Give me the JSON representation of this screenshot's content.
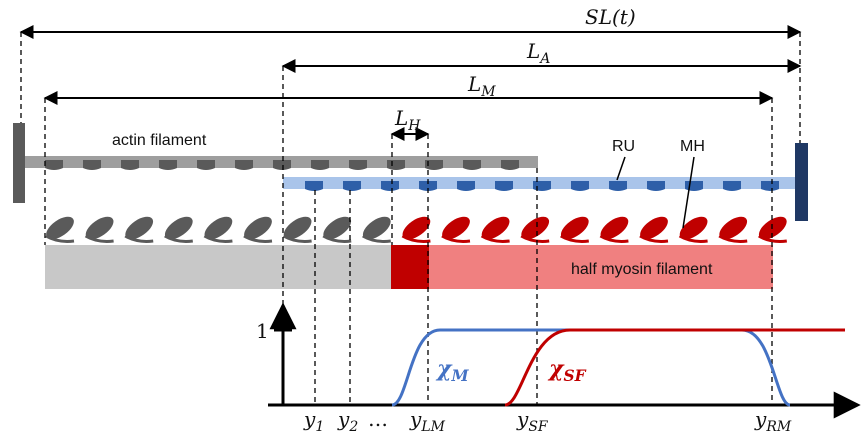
{
  "labels": {
    "sl": "SL(t)",
    "la": "L_A",
    "lm": "L_M",
    "lh": "L_H",
    "actin": "actin filament",
    "ru": "RU",
    "mh": "MH",
    "myosin": "half myosin filament",
    "one": "1",
    "chi_m": "χ_M",
    "chi_sf": "χ_SF",
    "y1": "y_1",
    "y2": "y_2",
    "dots": "…",
    "ylm": "y_LM",
    "ysf": "y_SF",
    "yrm": "y_RM"
  },
  "colors": {
    "actin_grey": "#9e9e9e",
    "dark_grey": "#5a5a5a",
    "blue_band": "#a9c4ea",
    "blue_dark": "#2e5fa8",
    "navy": "#1f3864",
    "red": "#c00000",
    "pink": "#f08080",
    "light_grey": "#c8c8c8"
  }
}
